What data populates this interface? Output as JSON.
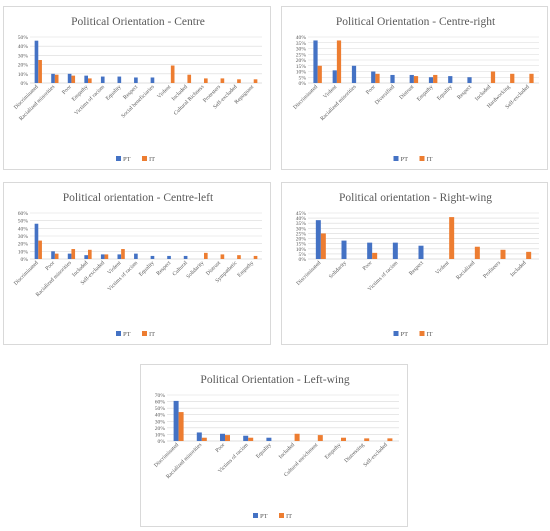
{
  "colors": {
    "PT": "#4472C4",
    "IT": "#ED7D31",
    "grid": "#d9d9d9",
    "axis": "#bfbfbf",
    "text": "#595959"
  },
  "chart_data": [
    {
      "type": "bar",
      "title": "Political Orientation - Centre",
      "categories": [
        "Discriminated",
        "Racialized minorities",
        "Poor",
        "Empathy",
        "Victims of racism",
        "Equality",
        "Respect",
        "Social beneficiaries",
        "Violent",
        "Included",
        "Cultural Richness",
        "Protesters",
        "Self-excluded",
        "Repugnant"
      ],
      "series": [
        {
          "name": "PT",
          "values": [
            46,
            10,
            10,
            8,
            7,
            7,
            6,
            6,
            0,
            0,
            0,
            0,
            0,
            0
          ]
        },
        {
          "name": "IT",
          "values": [
            25,
            9,
            8,
            5,
            0,
            0,
            0,
            0,
            19,
            9,
            5,
            5,
            4,
            4
          ]
        }
      ],
      "ylim": [
        0,
        50
      ],
      "yticks": [
        "0%",
        "10%",
        "20%",
        "30%",
        "40%",
        "50%"
      ],
      "legend": "bottom",
      "grid": true
    },
    {
      "type": "bar",
      "title": "Political Orientation - Centre-right",
      "categories": [
        "Discriminated",
        "Violent",
        "Racialized minorities",
        "Poor",
        "Diversified",
        "Distrust",
        "Empathy",
        "Equality",
        "Respect",
        "Included",
        "Hardworking",
        "Self-excluded"
      ],
      "series": [
        {
          "name": "PT",
          "values": [
            37,
            11,
            15,
            10,
            7,
            7,
            5,
            6,
            5,
            0,
            0,
            0
          ]
        },
        {
          "name": "IT",
          "values": [
            15,
            37,
            0,
            8,
            0,
            6,
            7,
            0,
            0,
            10,
            8,
            8
          ]
        }
      ],
      "ylim": [
        0,
        40
      ],
      "yticks": [
        "0%",
        "5%",
        "10%",
        "15%",
        "20%",
        "25%",
        "30%",
        "35%",
        "40%"
      ],
      "legend": "bottom",
      "grid": true
    },
    {
      "type": "bar",
      "title": "Political orientation - Centre-left",
      "categories": [
        "Discriminated",
        "Poor",
        "Racialized minorities",
        "Included",
        "Self-excluded",
        "Violent",
        "Victims of racism",
        "Equality",
        "Respect",
        "Cultural",
        "Solidarity",
        "Distrust",
        "Sympathetic",
        "Empathy"
      ],
      "series": [
        {
          "name": "PT",
          "values": [
            46,
            10,
            7,
            5,
            6,
            6,
            7,
            4,
            4,
            4,
            0,
            0,
            0,
            0
          ]
        },
        {
          "name": "IT",
          "values": [
            24,
            7,
            13,
            12,
            6,
            13,
            0,
            0,
            0,
            0,
            8,
            6,
            5,
            4
          ]
        }
      ],
      "ylim": [
        0,
        60
      ],
      "yticks": [
        "0%",
        "10%",
        "20%",
        "30%",
        "40%",
        "50%",
        "60%"
      ],
      "legend": "bottom",
      "grid": true
    },
    {
      "type": "bar",
      "title": "Political orientation - Right-wing",
      "categories": [
        "Discriminated",
        "Solidarity",
        "Poor",
        "Victims of racism",
        "Respect",
        "Violent",
        "Racialized",
        "Profiteers",
        "Included"
      ],
      "series": [
        {
          "name": "PT",
          "values": [
            38,
            18,
            16,
            16,
            13,
            0,
            0,
            0,
            0
          ]
        },
        {
          "name": "IT",
          "values": [
            25,
            0,
            6,
            0,
            0,
            41,
            12,
            9,
            7
          ]
        }
      ],
      "ylim": [
        0,
        45
      ],
      "yticks": [
        "0%",
        "5%",
        "10%",
        "15%",
        "20%",
        "25%",
        "30%",
        "35%",
        "40%",
        "45%"
      ],
      "legend": "bottom",
      "grid": true
    },
    {
      "type": "bar",
      "title": "Political Orientation - Left-wing",
      "categories": [
        "Discriminated",
        "Racialized minorities",
        "Poor",
        "Victims of racism",
        "Equality",
        "Included",
        "Cultural enrichment",
        "Empathy",
        "Distressing",
        "Self-excluded"
      ],
      "series": [
        {
          "name": "PT",
          "values": [
            61,
            13,
            11,
            8,
            5,
            0,
            0,
            0,
            0,
            0
          ]
        },
        {
          "name": "IT",
          "values": [
            44,
            5,
            9,
            5,
            0,
            11,
            9,
            5,
            4,
            4
          ]
        }
      ],
      "ylim": [
        0,
        70
      ],
      "yticks": [
        "0%",
        "10%",
        "20%",
        "30%",
        "40%",
        "50%",
        "60%",
        "70%"
      ],
      "legend": "bottom",
      "grid": true
    }
  ]
}
